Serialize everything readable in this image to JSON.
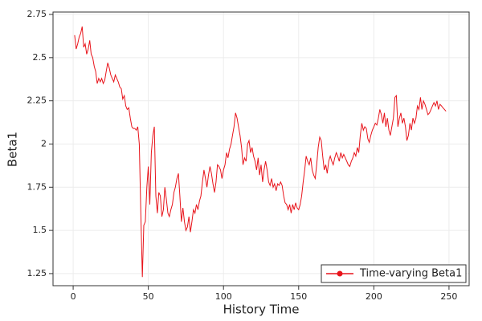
{
  "chart_data": {
    "type": "line",
    "xlabel": "History Time",
    "ylabel": "Beta1",
    "xlim": [
      -13.4,
      263.4
    ],
    "ylim": [
      1.18,
      2.764
    ],
    "xticks": [
      0,
      50,
      100,
      150,
      200,
      250
    ],
    "yticks": [
      1.25,
      1.5,
      1.75,
      2,
      2.25,
      2.5,
      2.75
    ],
    "grid": true,
    "legend": "lower right",
    "x": [
      1,
      2,
      3,
      4,
      5,
      6,
      7,
      8,
      9,
      10,
      11,
      12,
      13,
      14,
      15,
      16,
      17,
      18,
      19,
      20,
      21,
      22,
      23,
      24,
      25,
      26,
      27,
      28,
      29,
      30,
      31,
      32,
      33,
      34,
      35,
      36,
      37,
      38,
      39,
      40,
      41,
      42,
      43,
      44,
      45,
      46,
      47,
      48,
      49,
      50,
      51,
      52,
      53,
      54,
      55,
      56,
      57,
      58,
      59,
      60,
      61,
      62,
      63,
      64,
      65,
      66,
      67,
      68,
      69,
      70,
      71,
      72,
      73,
      74,
      75,
      76,
      77,
      78,
      79,
      80,
      81,
      82,
      83,
      84,
      85,
      86,
      87,
      88,
      89,
      90,
      91,
      92,
      93,
      94,
      95,
      96,
      97,
      98,
      99,
      100,
      101,
      102,
      103,
      104,
      105,
      106,
      107,
      108,
      109,
      110,
      111,
      112,
      113,
      114,
      115,
      116,
      117,
      118,
      119,
      120,
      121,
      122,
      123,
      124,
      125,
      126,
      127,
      128,
      129,
      130,
      131,
      132,
      133,
      134,
      135,
      136,
      137,
      138,
      139,
      140,
      141,
      142,
      143,
      144,
      145,
      146,
      147,
      148,
      149,
      150,
      151,
      152,
      153,
      154,
      155,
      156,
      157,
      158,
      159,
      160,
      161,
      162,
      163,
      164,
      165,
      166,
      167,
      168,
      169,
      170,
      171,
      172,
      173,
      174,
      175,
      176,
      177,
      178,
      179,
      180,
      181,
      182,
      183,
      184,
      185,
      186,
      187,
      188,
      189,
      190,
      191,
      192,
      193,
      194,
      195,
      196,
      197,
      198,
      199,
      200,
      201,
      202,
      203,
      204,
      205,
      206,
      207,
      208,
      209,
      210,
      211,
      212,
      213,
      214,
      215,
      216,
      217,
      218,
      219,
      220,
      221,
      222,
      223,
      224,
      225,
      226,
      227,
      228,
      229,
      230,
      231,
      232,
      233,
      234,
      235,
      236,
      237,
      238,
      239,
      240,
      241,
      242,
      243,
      244,
      245,
      246,
      247,
      248
    ],
    "series": [
      {
        "name": "Time-varying Beta1",
        "color": "#e8141b",
        "values": [
          2.63,
          2.55,
          2.58,
          2.62,
          2.64,
          2.68,
          2.56,
          2.58,
          2.52,
          2.55,
          2.6,
          2.52,
          2.5,
          2.45,
          2.42,
          2.35,
          2.38,
          2.36,
          2.38,
          2.35,
          2.37,
          2.42,
          2.47,
          2.44,
          2.4,
          2.38,
          2.36,
          2.4,
          2.38,
          2.36,
          2.33,
          2.32,
          2.26,
          2.28,
          2.22,
          2.2,
          2.21,
          2.15,
          2.1,
          2.09,
          2.09,
          2.08,
          2.1,
          2.0,
          1.6,
          1.23,
          1.53,
          1.55,
          1.75,
          1.87,
          1.65,
          1.95,
          2.05,
          2.1,
          1.7,
          1.6,
          1.72,
          1.7,
          1.58,
          1.62,
          1.75,
          1.68,
          1.6,
          1.58,
          1.62,
          1.65,
          1.72,
          1.75,
          1.8,
          1.83,
          1.7,
          1.55,
          1.63,
          1.55,
          1.5,
          1.52,
          1.58,
          1.49,
          1.55,
          1.62,
          1.6,
          1.65,
          1.62,
          1.67,
          1.7,
          1.78,
          1.85,
          1.8,
          1.75,
          1.82,
          1.87,
          1.83,
          1.77,
          1.72,
          1.78,
          1.88,
          1.87,
          1.85,
          1.8,
          1.85,
          1.88,
          1.95,
          1.92,
          1.97,
          2.0,
          2.05,
          2.1,
          2.18,
          2.15,
          2.1,
          2.05,
          1.98,
          1.88,
          1.92,
          1.9,
          2.0,
          2.02,
          1.95,
          1.98,
          1.93,
          1.9,
          1.85,
          1.92,
          1.82,
          1.88,
          1.78,
          1.85,
          1.9,
          1.85,
          1.78,
          1.76,
          1.8,
          1.75,
          1.77,
          1.73,
          1.77,
          1.76,
          1.78,
          1.76,
          1.7,
          1.66,
          1.65,
          1.62,
          1.65,
          1.6,
          1.65,
          1.62,
          1.66,
          1.63,
          1.62,
          1.65,
          1.7,
          1.78,
          1.85,
          1.93,
          1.9,
          1.88,
          1.92,
          1.85,
          1.82,
          1.8,
          1.88,
          1.98,
          2.04,
          2.02,
          1.93,
          1.85,
          1.88,
          1.83,
          1.9,
          1.93,
          1.9,
          1.88,
          1.92,
          1.95,
          1.93,
          1.9,
          1.95,
          1.92,
          1.94,
          1.92,
          1.9,
          1.88,
          1.87,
          1.9,
          1.92,
          1.95,
          1.93,
          1.98,
          1.95,
          2.05,
          2.12,
          2.08,
          2.1,
          2.09,
          2.03,
          2.01,
          2.05,
          2.08,
          2.1,
          2.12,
          2.11,
          2.15,
          2.2,
          2.17,
          2.12,
          2.18,
          2.1,
          2.15,
          2.08,
          2.05,
          2.1,
          2.15,
          2.27,
          2.28,
          2.1,
          2.15,
          2.18,
          2.12,
          2.15,
          2.1,
          2.02,
          2.05,
          2.12,
          2.08,
          2.15,
          2.12,
          2.15,
          2.22,
          2.2,
          2.27,
          2.2,
          2.25,
          2.23,
          2.2,
          2.17,
          2.18,
          2.2,
          2.22,
          2.24,
          2.22,
          2.25,
          2.2,
          2.23,
          2.22,
          2.21,
          2.2,
          2.19
        ]
      }
    ]
  }
}
